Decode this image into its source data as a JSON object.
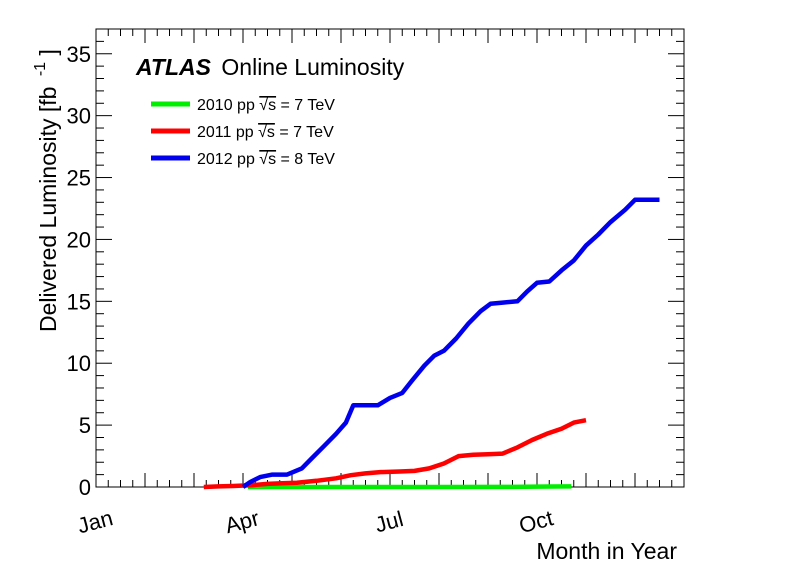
{
  "chart_data": {
    "type": "line",
    "title_bold": "ATLAS",
    "title_rest": "Online Luminosity",
    "xlabel": "Month in Year",
    "ylabel": "Delivered Luminosity [fb",
    "ylabel_sup": "-1",
    "ylabel_close": "]",
    "xlim": [
      1,
      13
    ],
    "ylim": [
      0,
      37
    ],
    "x_ticks": [
      {
        "month": 1,
        "label": "Jan"
      },
      {
        "month": 4,
        "label": "Apr"
      },
      {
        "month": 7,
        "label": "Jul"
      },
      {
        "month": 10,
        "label": "Oct"
      }
    ],
    "y_ticks": [
      0,
      5,
      10,
      15,
      20,
      25,
      30,
      35
    ],
    "series": [
      {
        "name": "2010 pp √s = 7 TeV",
        "legend_prefix": "2010 pp ",
        "legend_root": "√s",
        "legend_suffix": " = 7 TeV",
        "color": "#00ee00",
        "points": [
          [
            4.1,
            0.0
          ],
          [
            6.0,
            0.0
          ],
          [
            8.0,
            0.0
          ],
          [
            9.5,
            0.01
          ],
          [
            10.0,
            0.03
          ],
          [
            10.3,
            0.04
          ],
          [
            10.7,
            0.045
          ]
        ]
      },
      {
        "name": "2011 pp √s = 7 TeV",
        "legend_prefix": "2011 pp ",
        "legend_root": "√s",
        "legend_suffix": " = 7 TeV",
        "color": "#ff0000",
        "points": [
          [
            3.2,
            0.0
          ],
          [
            3.5,
            0.05
          ],
          [
            3.8,
            0.08
          ],
          [
            4.2,
            0.15
          ],
          [
            4.5,
            0.25
          ],
          [
            4.8,
            0.3
          ],
          [
            5.1,
            0.35
          ],
          [
            5.5,
            0.5
          ],
          [
            5.9,
            0.7
          ],
          [
            6.2,
            0.95
          ],
          [
            6.5,
            1.1
          ],
          [
            6.8,
            1.2
          ],
          [
            7.2,
            1.25
          ],
          [
            7.5,
            1.3
          ],
          [
            7.8,
            1.5
          ],
          [
            8.1,
            1.9
          ],
          [
            8.4,
            2.5
          ],
          [
            8.7,
            2.6
          ],
          [
            9.0,
            2.65
          ],
          [
            9.3,
            2.7
          ],
          [
            9.6,
            3.2
          ],
          [
            9.9,
            3.8
          ],
          [
            10.2,
            4.3
          ],
          [
            10.5,
            4.7
          ],
          [
            10.75,
            5.2
          ],
          [
            11.0,
            5.4
          ]
        ]
      },
      {
        "name": "2012 pp √s = 8 TeV",
        "legend_prefix": "2012 pp ",
        "legend_root": "√s",
        "legend_suffix": " = 8 TeV",
        "color": "#0000ee",
        "points": [
          [
            4.0,
            0.0
          ],
          [
            4.15,
            0.4
          ],
          [
            4.35,
            0.8
          ],
          [
            4.6,
            1.0
          ],
          [
            4.9,
            1.0
          ],
          [
            5.2,
            1.5
          ],
          [
            5.4,
            2.3
          ],
          [
            5.65,
            3.3
          ],
          [
            5.9,
            4.3
          ],
          [
            6.1,
            5.2
          ],
          [
            6.25,
            6.6
          ],
          [
            6.5,
            6.6
          ],
          [
            6.75,
            6.6
          ],
          [
            7.0,
            7.2
          ],
          [
            7.25,
            7.6
          ],
          [
            7.45,
            8.6
          ],
          [
            7.7,
            9.8
          ],
          [
            7.9,
            10.6
          ],
          [
            8.1,
            11.0
          ],
          [
            8.35,
            12.0
          ],
          [
            8.6,
            13.2
          ],
          [
            8.85,
            14.2
          ],
          [
            9.05,
            14.8
          ],
          [
            9.3,
            14.9
          ],
          [
            9.6,
            15.0
          ],
          [
            9.8,
            15.8
          ],
          [
            10.0,
            16.5
          ],
          [
            10.25,
            16.6
          ],
          [
            10.5,
            17.5
          ],
          [
            10.75,
            18.3
          ],
          [
            11.0,
            19.5
          ],
          [
            11.25,
            20.4
          ],
          [
            11.5,
            21.4
          ],
          [
            11.8,
            22.4
          ],
          [
            12.0,
            23.2
          ],
          [
            12.5,
            23.2
          ]
        ]
      }
    ]
  }
}
